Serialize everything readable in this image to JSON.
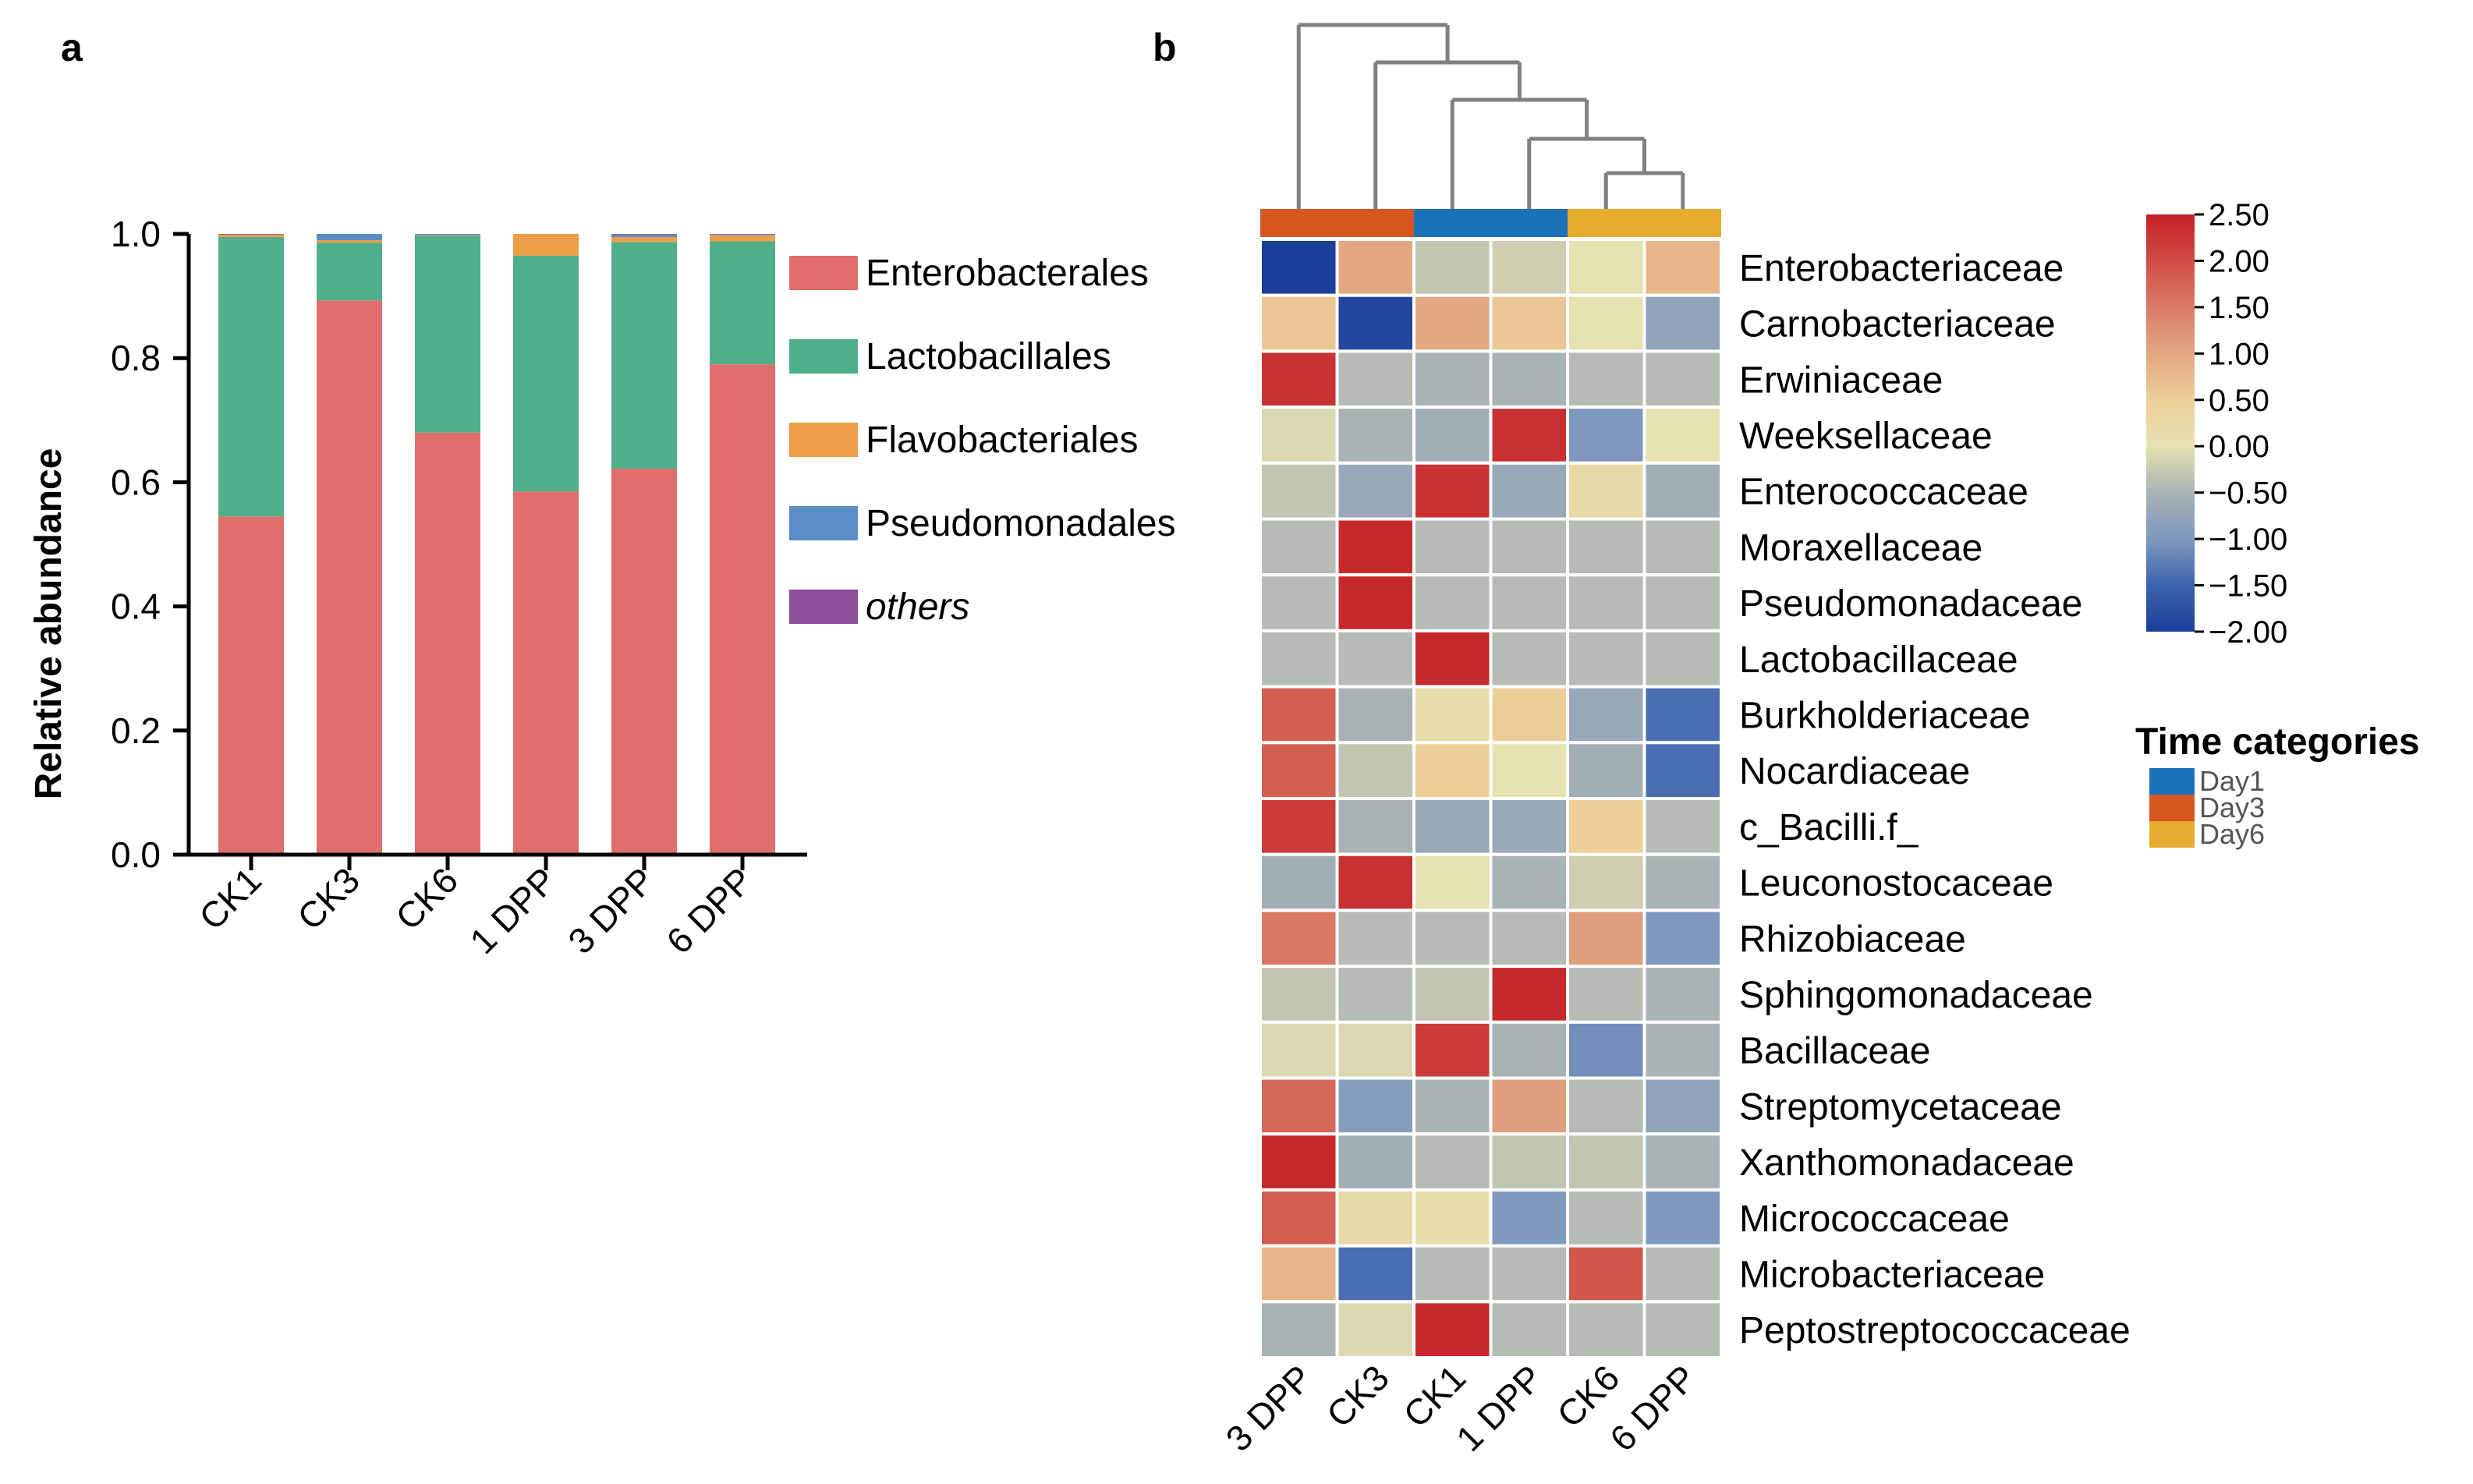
{
  "panel_labels": {
    "a": "a",
    "b": "b"
  },
  "chart_data": [
    {
      "type": "bar",
      "stacked": true,
      "ylabel": "Relative abundance",
      "ylim": [
        0,
        1.0
      ],
      "yticks": [
        "0.0",
        "0.2",
        "0.4",
        "0.6",
        "0.8",
        "1.0"
      ],
      "categories": [
        "CK1",
        "CK3",
        "CK6",
        "1 DPP",
        "3 DPP",
        "6 DPP"
      ],
      "series": [
        {
          "name": "Enterobacterales",
          "color": "#E06E6B",
          "values": [
            0.545,
            0.893,
            0.68,
            0.585,
            0.622,
            0.79
          ]
        },
        {
          "name": "Lactobacillales",
          "color": "#4EAF8A",
          "values": [
            0.45,
            0.093,
            0.317,
            0.38,
            0.365,
            0.198
          ]
        },
        {
          "name": "Flavobacteriales",
          "color": "#EE9D48",
          "values": [
            0.004,
            0.004,
            0.001,
            0.035,
            0.008,
            0.01
          ]
        },
        {
          "name": "Pseudomonadales",
          "color": "#5A8DC8",
          "values": [
            0.0,
            0.01,
            0.002,
            0.0,
            0.004,
            0.002
          ]
        },
        {
          "name": "others",
          "color": "#8E4E9B",
          "values": [
            0.001,
            0.0,
            0.0,
            0.0,
            0.001,
            0.0
          ]
        }
      ],
      "legend_position": "right"
    },
    {
      "type": "heatmap",
      "columns": [
        "3 DPP",
        "CK3",
        "CK1",
        "1 DPP",
        "CK6",
        "6 DPP"
      ],
      "column_category": [
        "Day3",
        "Day3",
        "Day1",
        "Day1",
        "Day6",
        "Day6"
      ],
      "rows": [
        "Enterobacteriaceae",
        "Carnobacteriaceae",
        "Erwiniaceae",
        "Weeksellaceae",
        "Enterococcaceae",
        "Moraxellaceae",
        "Pseudomonadaceae",
        "Lactobacillaceae",
        "Burkholderiaceae",
        "Nocardiaceae",
        "c_Bacilli.f_",
        "Leuconostocaceae",
        "Rhizobiaceae",
        "Sphingomonadaceae",
        "Bacillaceae",
        "Streptomycetaceae",
        "Xanthomonadaceae",
        "Micrococcaceae",
        "Microbacteriaceae",
        "Peptostreptococcaceae"
      ],
      "values": [
        [
          -2.0,
          1.0,
          -0.3,
          -0.2,
          0.0,
          0.8
        ],
        [
          0.6,
          -1.9,
          1.0,
          0.6,
          0.0,
          -0.8
        ],
        [
          2.3,
          -0.4,
          -0.5,
          -0.5,
          -0.4,
          -0.4
        ],
        [
          -0.1,
          -0.5,
          -0.6,
          2.3,
          -1.0,
          0.0
        ],
        [
          -0.3,
          -0.7,
          2.3,
          -0.7,
          0.2,
          -0.6
        ],
        [
          -0.4,
          2.4,
          -0.4,
          -0.4,
          -0.4,
          -0.4
        ],
        [
          -0.4,
          2.4,
          -0.4,
          -0.4,
          -0.4,
          -0.4
        ],
        [
          -0.4,
          -0.4,
          2.4,
          -0.4,
          -0.4,
          -0.4
        ],
        [
          1.8,
          -0.5,
          0.1,
          0.5,
          -0.7,
          -1.4
        ],
        [
          1.8,
          -0.3,
          0.5,
          0.0,
          -0.6,
          -1.4
        ],
        [
          2.2,
          -0.5,
          -0.7,
          -0.7,
          0.5,
          -0.4
        ],
        [
          -0.6,
          2.3,
          0.0,
          -0.5,
          -0.2,
          -0.5
        ],
        [
          1.5,
          -0.4,
          -0.4,
          -0.4,
          1.1,
          -1.0
        ],
        [
          -0.3,
          -0.4,
          -0.3,
          2.4,
          -0.4,
          -0.5
        ],
        [
          -0.1,
          -0.1,
          2.2,
          -0.5,
          -1.1,
          -0.5
        ],
        [
          1.7,
          -0.9,
          -0.5,
          1.1,
          -0.4,
          -0.8
        ],
        [
          2.4,
          -0.6,
          -0.4,
          -0.3,
          -0.3,
          -0.5
        ],
        [
          1.8,
          0.2,
          0.1,
          -1.0,
          -0.4,
          -1.0
        ],
        [
          0.8,
          -1.4,
          -0.4,
          -0.4,
          1.9,
          -0.4
        ],
        [
          -0.5,
          -0.1,
          2.4,
          -0.4,
          -0.4,
          -0.4
        ]
      ],
      "colorbar": {
        "ticks": [
          "2.50",
          "2.00",
          "1.50",
          "1.00",
          "0.50",
          "0.00",
          "-0.50",
          "-1.00",
          "-1.50",
          "-2.00"
        ],
        "range": [
          -2.0,
          2.5
        ]
      },
      "dendrogram": "(3 DPP,(CK3,(CK1,(1 DPP,(CK6,6 DPP)))))",
      "time_categories": {
        "title": "Time categories",
        "items": [
          {
            "label": "Day1",
            "color": "#1C72B8"
          },
          {
            "label": "Day3",
            "color": "#D6561F"
          },
          {
            "label": "Day6",
            "color": "#E6AC2E"
          }
        ]
      }
    }
  ]
}
